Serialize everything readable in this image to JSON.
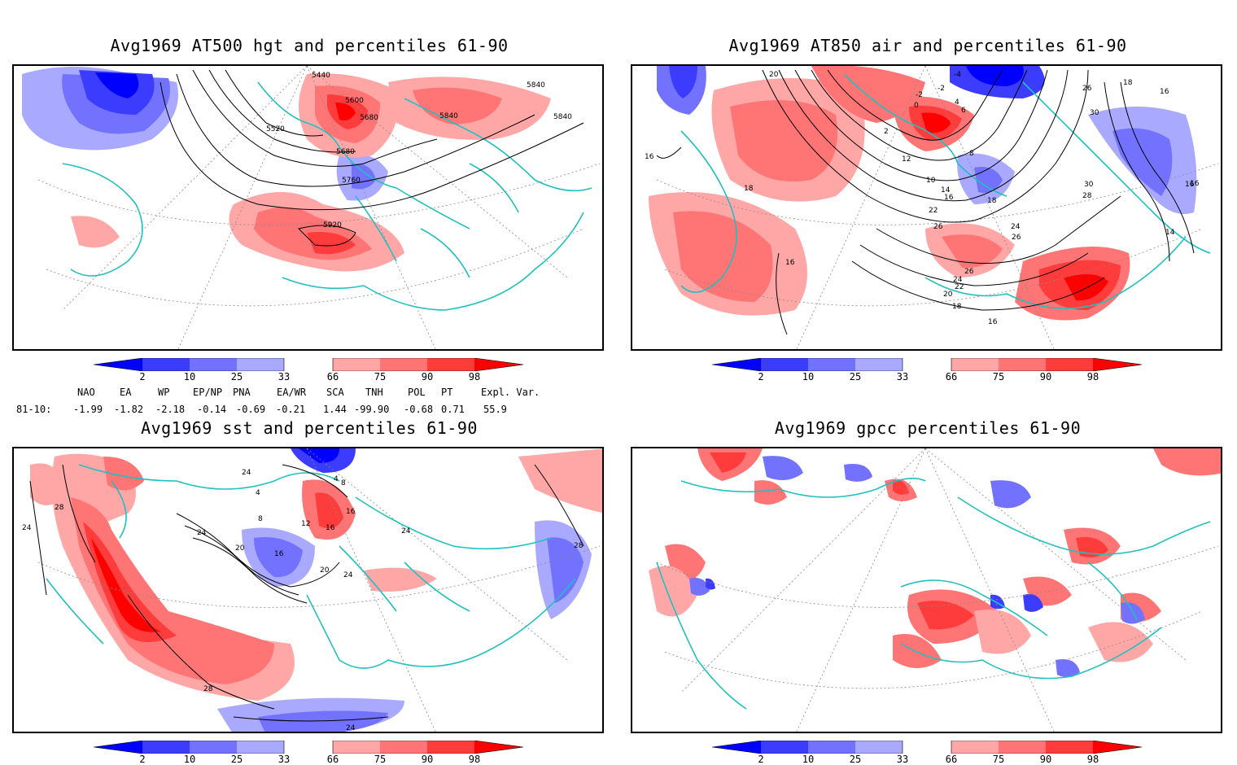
{
  "panels": [
    {
      "id": "p1",
      "title": "Avg1969 AT500 hgt and percentiles 61-90",
      "contour_labels": [
        "5440",
        "5600",
        "5680",
        "5520",
        "5840",
        "5840",
        "5840",
        "5680",
        "5760",
        "5920"
      ]
    },
    {
      "id": "p2",
      "title": "Avg1969 AT850 air and percentiles 61-90",
      "contour_labels": [
        "20",
        "-4",
        "-2",
        "-2",
        "0",
        "4",
        "6",
        "2",
        "8",
        "26",
        "18",
        "16",
        "30",
        "16",
        "18",
        "16",
        "12",
        "10",
        "14",
        "16",
        "18",
        "22",
        "24",
        "26",
        "26",
        "28",
        "30",
        "16",
        "14",
        "16",
        "26",
        "24",
        "22",
        "20",
        "18",
        "16"
      ]
    },
    {
      "id": "p3",
      "title": "Avg1969 sst and percentiles 61-90",
      "contour_labels": [
        "24",
        "28",
        "24",
        "4",
        "8",
        "4",
        "12",
        "8",
        "16",
        "16",
        "24",
        "20",
        "16",
        "20",
        "24",
        "24",
        "28",
        "28",
        "24"
      ]
    },
    {
      "id": "p4",
      "title": "Avg1969 gpcc percentiles 61-90",
      "contour_labels": []
    }
  ],
  "colorbar": {
    "labels": [
      "2",
      "10",
      "25",
      "33",
      "66",
      "75",
      "90",
      "98"
    ],
    "colors": {
      "b_deep": "#0000ff",
      "b_mid": "#3c3cff",
      "b_light": "#7272ff",
      "b_pale": "#a9a9ff",
      "r_pale": "#ffa7a7",
      "r_light": "#ff7474",
      "r_mid": "#ff3c3c",
      "r_deep": "#ff0000"
    }
  },
  "indices": {
    "headers": [
      "NAO",
      "EA",
      "WP",
      "EP/NP",
      "PNA",
      "EA/WR",
      "SCA",
      "TNH",
      "POL",
      "PT",
      "Expl. Var."
    ],
    "row_label": "81-10:",
    "values": [
      "-1.99",
      "-1.82",
      "-2.18",
      "-0.14",
      "-0.69",
      "-0.21",
      "1.44",
      "-99.90",
      "-0.68",
      "0.71",
      "55.9"
    ]
  },
  "map_colors": {
    "coastline": "#20c0c0",
    "graticule": "#888888",
    "contour": "#000000"
  }
}
